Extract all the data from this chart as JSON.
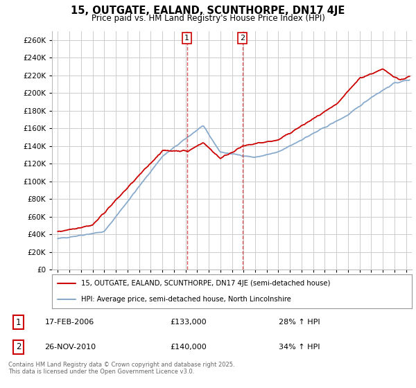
{
  "title": "15, OUTGATE, EALAND, SCUNTHORPE, DN17 4JE",
  "subtitle": "Price paid vs. HM Land Registry's House Price Index (HPI)",
  "legend_line1": "15, OUTGATE, EALAND, SCUNTHORPE, DN17 4JE (semi-detached house)",
  "legend_line2": "HPI: Average price, semi-detached house, North Lincolnshire",
  "transaction1": {
    "label": "1",
    "date": "17-FEB-2006",
    "price": 133000,
    "hpi_pct": "28% ↑ HPI",
    "year": 2006.12
  },
  "transaction2": {
    "label": "2",
    "date": "26-NOV-2010",
    "price": 140000,
    "hpi_pct": "34% ↑ HPI",
    "year": 2010.9
  },
  "footnote": "Contains HM Land Registry data © Crown copyright and database right 2025.\nThis data is licensed under the Open Government Licence v3.0.",
  "ylim": [
    0,
    270000
  ],
  "yticks": [
    0,
    20000,
    40000,
    60000,
    80000,
    100000,
    120000,
    140000,
    160000,
    180000,
    200000,
    220000,
    240000,
    260000
  ],
  "xlim_start": 1994.5,
  "xlim_end": 2025.5,
  "line_color_red": "#cc0000",
  "line_color_blue": "#88aacc",
  "bg_color": "#ffffff",
  "grid_color": "#cccccc"
}
